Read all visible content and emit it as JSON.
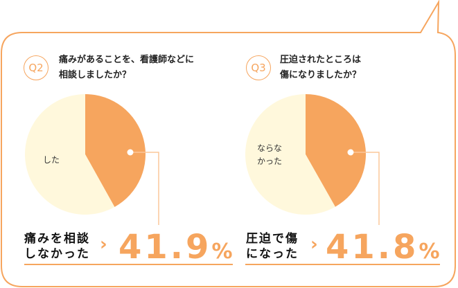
{
  "colors": {
    "accent": "#f6a55e",
    "light": "#fff8dc",
    "text": "#111111"
  },
  "chart_data": [
    {
      "type": "pie",
      "badge": "Q2",
      "question": [
        "痛みがあることを、看護師などに",
        "相談しましたか？"
      ],
      "slices": [
        {
          "label": "痛みを相談しなかった",
          "value": 41.9,
          "color": "#f6a55e"
        },
        {
          "label": "した",
          "value": 58.1,
          "color": "#fff8dc"
        }
      ],
      "result_label": [
        "痛みを相談",
        "しなかった"
      ],
      "result_value": "41.9",
      "unit": "%"
    },
    {
      "type": "pie",
      "badge": "Q3",
      "question": [
        "圧迫されたところは",
        "傷になりましたか？"
      ],
      "slices": [
        {
          "label": "圧迫で傷になった",
          "value": 41.8,
          "color": "#f6a55e"
        },
        {
          "label": "ならなかった",
          "value": 58.2,
          "color": "#fff8dc"
        }
      ],
      "result_label": [
        "圧迫で傷",
        "になった"
      ],
      "result_value": "41.8",
      "unit": "%"
    }
  ],
  "labels": {
    "q2_other": [
      "した"
    ],
    "q3_other": [
      "ならな",
      "かった"
    ]
  }
}
